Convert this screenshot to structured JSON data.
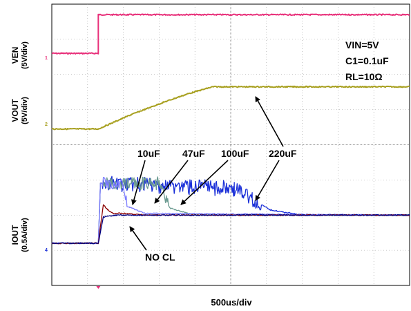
{
  "chart_data": {
    "type": "line",
    "title": "",
    "xlabel": "500us/div",
    "conditions": [
      "VIN=5V",
      "C1=0.1uF",
      "RL=10Ω"
    ],
    "channels": [
      {
        "name": "VEN",
        "scale": "(5V/div)",
        "marker": "1",
        "color": "#e8307a"
      },
      {
        "name": "VOUT",
        "scale": "(5V/div)",
        "marker": "2",
        "color": "#a8a020"
      },
      {
        "name": "IOUT",
        "scale": "(0.5A/div)",
        "marker": "4",
        "color": "#1a2fd8"
      }
    ],
    "x_divisions": 10,
    "x_unit": "us",
    "x_range": [
      0,
      5000
    ],
    "y_range_div": [
      0,
      8
    ],
    "series": [
      {
        "name": "VEN",
        "color": "#e8307a",
        "x": [
          0,
          650,
          650,
          5000
        ],
        "y": [
          6.6,
          6.6,
          7.7,
          7.7
        ]
      },
      {
        "name": "VOUT",
        "color": "#a8a020",
        "x": [
          0,
          650,
          1100,
          1550,
          1900,
          2250,
          5000
        ],
        "y": [
          4.45,
          4.45,
          4.85,
          5.2,
          5.45,
          5.65,
          5.65
        ]
      },
      {
        "name": "IOUT NO CL",
        "color": "#000080",
        "x": [
          0,
          650,
          720,
          900,
          5000
        ],
        "y": [
          1.2,
          1.2,
          1.95,
          2.0,
          2.0
        ]
      },
      {
        "name": "IOUT 10uF",
        "color": "#8b0000",
        "x": [
          0,
          650,
          720,
          780,
          860,
          1000,
          1300,
          5000
        ],
        "y": [
          1.2,
          1.2,
          2.3,
          2.15,
          2.05,
          2.05,
          2.0,
          2.0
        ]
      },
      {
        "name": "IOUT 47uF",
        "color": "#7a7aff",
        "x": [
          0,
          650,
          680,
          1000,
          1050,
          1300,
          5000
        ],
        "y": [
          1.2,
          1.2,
          2.9,
          2.9,
          2.25,
          2.05,
          2.0
        ]
      },
      {
        "name": "IOUT 100uF",
        "color": "#6a9a90",
        "x": [
          0,
          650,
          680,
          1500,
          1650,
          2000,
          5000
        ],
        "y": [
          1.2,
          1.2,
          2.9,
          2.9,
          2.2,
          2.0,
          2.0
        ]
      },
      {
        "name": "IOUT 220uF",
        "color": "#1a2fd8",
        "x": [
          0,
          650,
          680,
          2550,
          2800,
          3050,
          3500,
          5000
        ],
        "y": [
          1.2,
          1.2,
          2.9,
          2.75,
          2.45,
          2.15,
          2.0,
          2.0
        ]
      }
    ],
    "annotations": [
      "10uF",
      "47uF",
      "100uF",
      "220uF",
      "NO CL"
    ]
  }
}
